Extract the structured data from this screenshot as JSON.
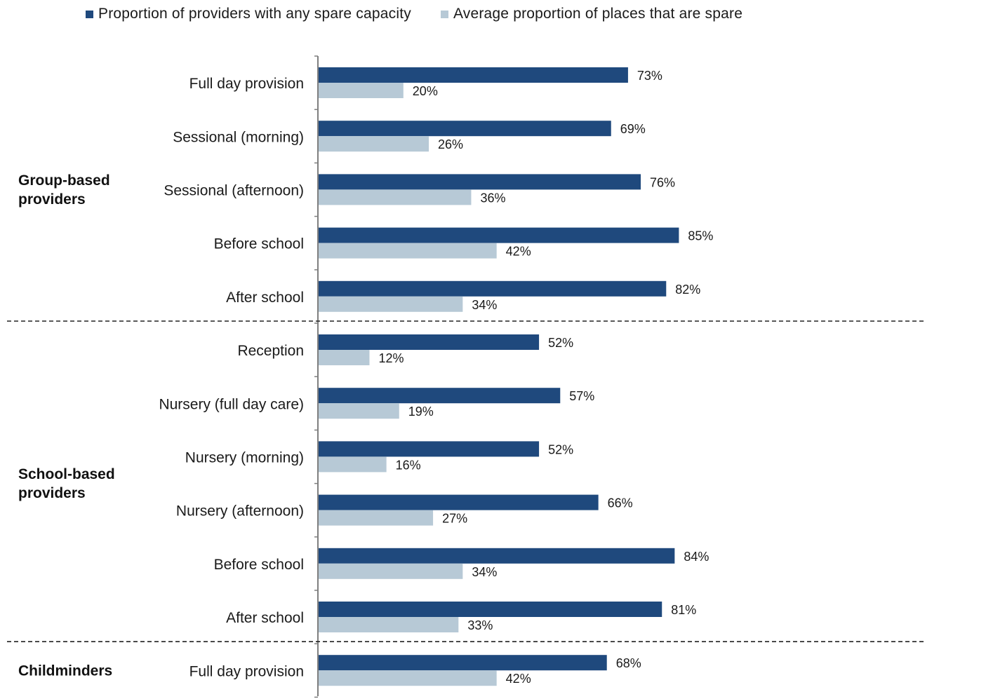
{
  "colors": {
    "series_1": "#1f497d",
    "series_2": "#b7c9d6",
    "axis": "#7f7f7f",
    "divider": "#222222"
  },
  "legend": {
    "position": "top",
    "series_1_label": "Proportion of providers with any spare capacity",
    "series_2_label": "Average proportion of places that are spare"
  },
  "chart_data": {
    "type": "bar",
    "orientation": "horizontal",
    "title": "",
    "xlabel": "",
    "ylabel": "",
    "xlim": [
      0,
      100
    ],
    "grid": false,
    "unit": "%",
    "groups": [
      {
        "label": "Group-based\nproviders",
        "categories": [
          "Full day provision",
          "Sessional (morning)",
          "Sessional (afternoon)",
          "Before school",
          "After school"
        ]
      },
      {
        "label": "School-based\nproviders",
        "categories": [
          "Reception",
          "Nursery (full day care)",
          "Nursery (morning)",
          "Nursery (afternoon)",
          "Before school",
          "After school"
        ]
      },
      {
        "label": "Childminders",
        "categories": [
          "Full day provision"
        ]
      }
    ],
    "categories": [
      "Full day provision",
      "Sessional (morning)",
      "Sessional (afternoon)",
      "Before school",
      "After school",
      "Reception",
      "Nursery (full day care)",
      "Nursery (morning)",
      "Nursery (afternoon)",
      "Before school",
      "After school",
      "Full day provision"
    ],
    "series": [
      {
        "name": "Proportion of providers with any spare capacity",
        "values": [
          73,
          69,
          76,
          85,
          82,
          52,
          57,
          52,
          66,
          84,
          81,
          68
        ]
      },
      {
        "name": "Average proportion of places that are spare",
        "values": [
          20,
          26,
          36,
          42,
          34,
          12,
          19,
          16,
          27,
          34,
          33,
          42
        ]
      }
    ],
    "data_labels": [
      [
        "73%",
        "69%",
        "76%",
        "85%",
        "82%",
        "52%",
        "57%",
        "52%",
        "66%",
        "84%",
        "81%",
        "68%"
      ],
      [
        "20%",
        "26%",
        "36%",
        "42%",
        "34%",
        "12%",
        "19%",
        "16%",
        "27%",
        "34%",
        "33%",
        "42%"
      ]
    ]
  }
}
